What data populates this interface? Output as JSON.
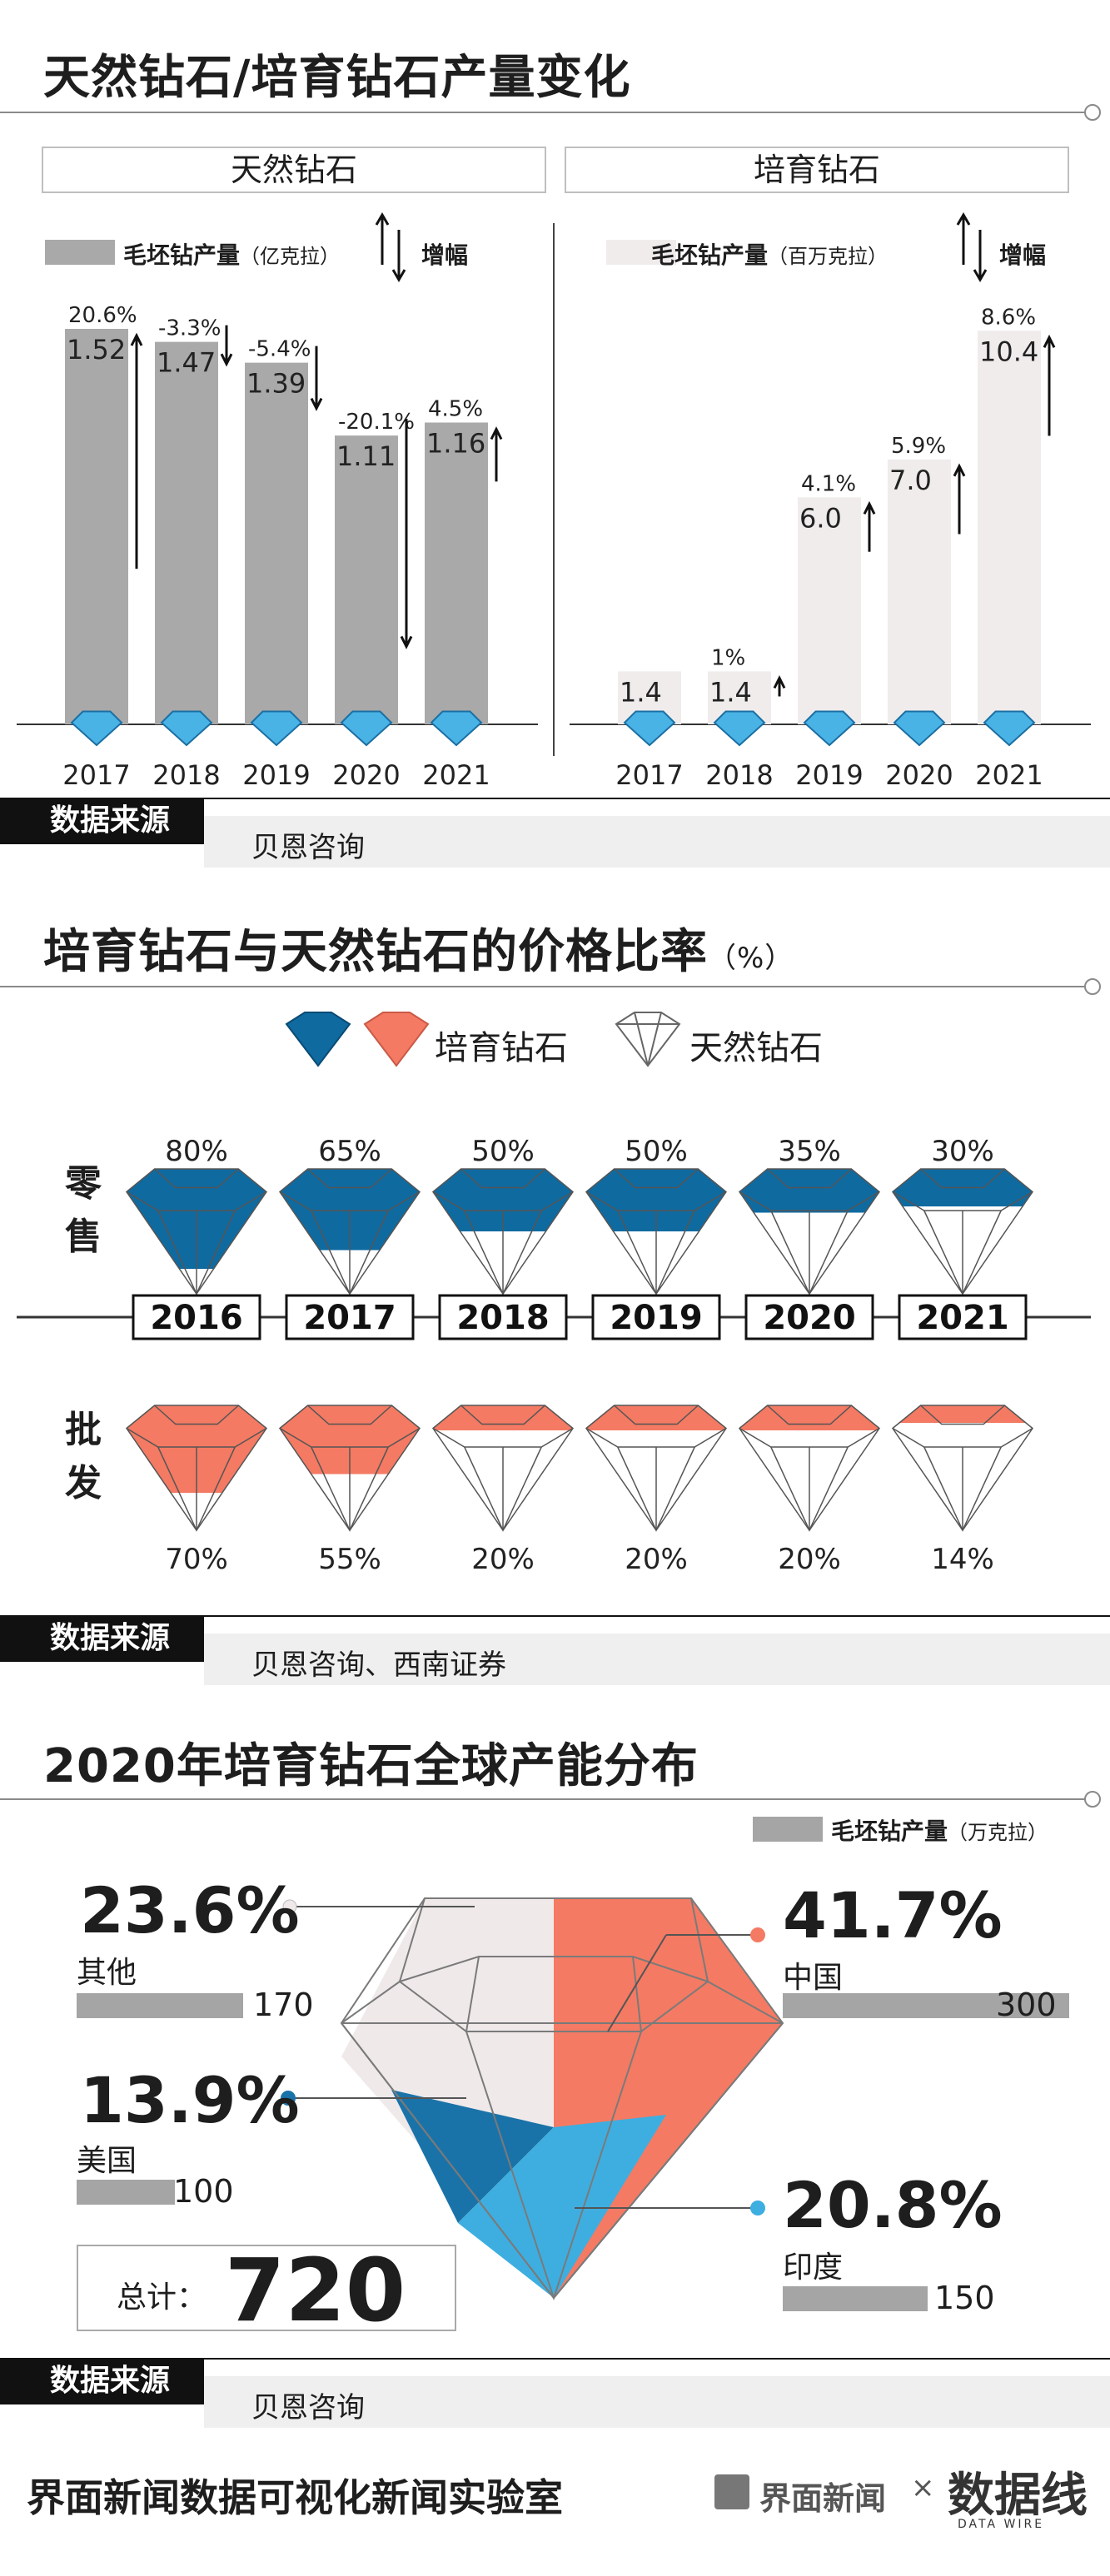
{
  "section1": {
    "title": "天然钻石/培育钻石产量变化",
    "natural": {
      "panel_title": "天然钻石",
      "legend_label": "毛坯钻产量",
      "legend_unit": "（亿克拉）",
      "change_label": "增幅",
      "bar_color": "#a9a9a9"
    },
    "lab": {
      "panel_title": "培育钻石",
      "legend_label": "毛坯钻产量",
      "legend_unit": "（百万克拉）",
      "change_label": "增幅",
      "bar_color": "#f0ecec"
    },
    "source_label": "数据来源",
    "source_text": "贝恩咨询"
  },
  "section2": {
    "title": "培育钻石与天然钻石的价格比率",
    "unit": "（%）",
    "legend_lab": "培育钻石",
    "legend_natural": "天然钻石",
    "retail_label": [
      "零",
      "售"
    ],
    "wholesale_label": [
      "批",
      "发"
    ],
    "colors": {
      "retail": "#0f6aa0",
      "wholesale": "#f47a63"
    },
    "source_label": "数据来源",
    "source_text": "贝恩咨询、西南证券"
  },
  "section3": {
    "title": "2020年培育钻石全球产能分布",
    "legend_label": "毛坯钻产量",
    "legend_unit": "（万克拉）",
    "total_label": "总计：",
    "total_value": "720",
    "regions": [
      {
        "pct": "23.6%",
        "name": "其他",
        "value": "170",
        "color": "#efe9ea"
      },
      {
        "pct": "41.7%",
        "name": "中国",
        "value": "300",
        "color": "#f47a63"
      },
      {
        "pct": "13.9%",
        "name": "美国",
        "value": "100",
        "color": "#1a73a8"
      },
      {
        "pct": "20.8%",
        "name": "印度",
        "value": "150",
        "color": "#3eaee0"
      }
    ],
    "source_label": "数据来源",
    "source_text": "贝恩咨询"
  },
  "footer": {
    "org": "界面新闻数据可视化新闻实验室",
    "logo_text": "界面新闻",
    "times": "×",
    "brand": "数据线",
    "brand_sub": "DATA WIRE"
  },
  "chart_data": [
    {
      "type": "bar",
      "title": "天然钻石",
      "categories": [
        "2017",
        "2018",
        "2019",
        "2020",
        "2021"
      ],
      "series": [
        {
          "name": "毛坯钻产量",
          "values": [
            1.52,
            1.47,
            1.39,
            1.11,
            1.16
          ]
        },
        {
          "name": "增幅",
          "values": [
            "20.6%",
            "-3.3%",
            "-5.4%",
            "-20.1%",
            "4.5%"
          ]
        }
      ],
      "ylim": [
        0,
        1.6
      ]
    },
    {
      "type": "bar",
      "title": "培育钻石",
      "categories": [
        "2017",
        "2018",
        "2019",
        "2020",
        "2021"
      ],
      "series": [
        {
          "name": "毛坯钻产量",
          "values": [
            1.4,
            1.4,
            6.0,
            7.0,
            10.4
          ]
        },
        {
          "name": "增幅",
          "values": [
            "",
            "1%",
            "4.1%",
            "5.9%",
            "8.6%"
          ]
        }
      ],
      "ylim": [
        0,
        11
      ]
    },
    {
      "type": "bar",
      "title": "零售",
      "categories": [
        "2016",
        "2017",
        "2018",
        "2019",
        "2020",
        "2021"
      ],
      "values": [
        80,
        65,
        50,
        50,
        35,
        30
      ],
      "value_labels": [
        "80%",
        "65%",
        "50%",
        "50%",
        "35%",
        "30%"
      ]
    },
    {
      "type": "bar",
      "title": "批发",
      "categories": [
        "2016",
        "2017",
        "2018",
        "2019",
        "2020",
        "2021"
      ],
      "values": [
        70,
        55,
        20,
        20,
        20,
        14
      ],
      "value_labels": [
        "70%",
        "55%",
        "20%",
        "20%",
        "20%",
        "14%"
      ]
    },
    {
      "type": "pie",
      "title": "2020年培育钻石全球产能分布",
      "categories": [
        "其他",
        "中国",
        "美国",
        "印度"
      ],
      "values": [
        23.6,
        41.7,
        13.9,
        20.8
      ],
      "absolute_values": [
        170,
        300,
        100,
        150
      ]
    }
  ]
}
